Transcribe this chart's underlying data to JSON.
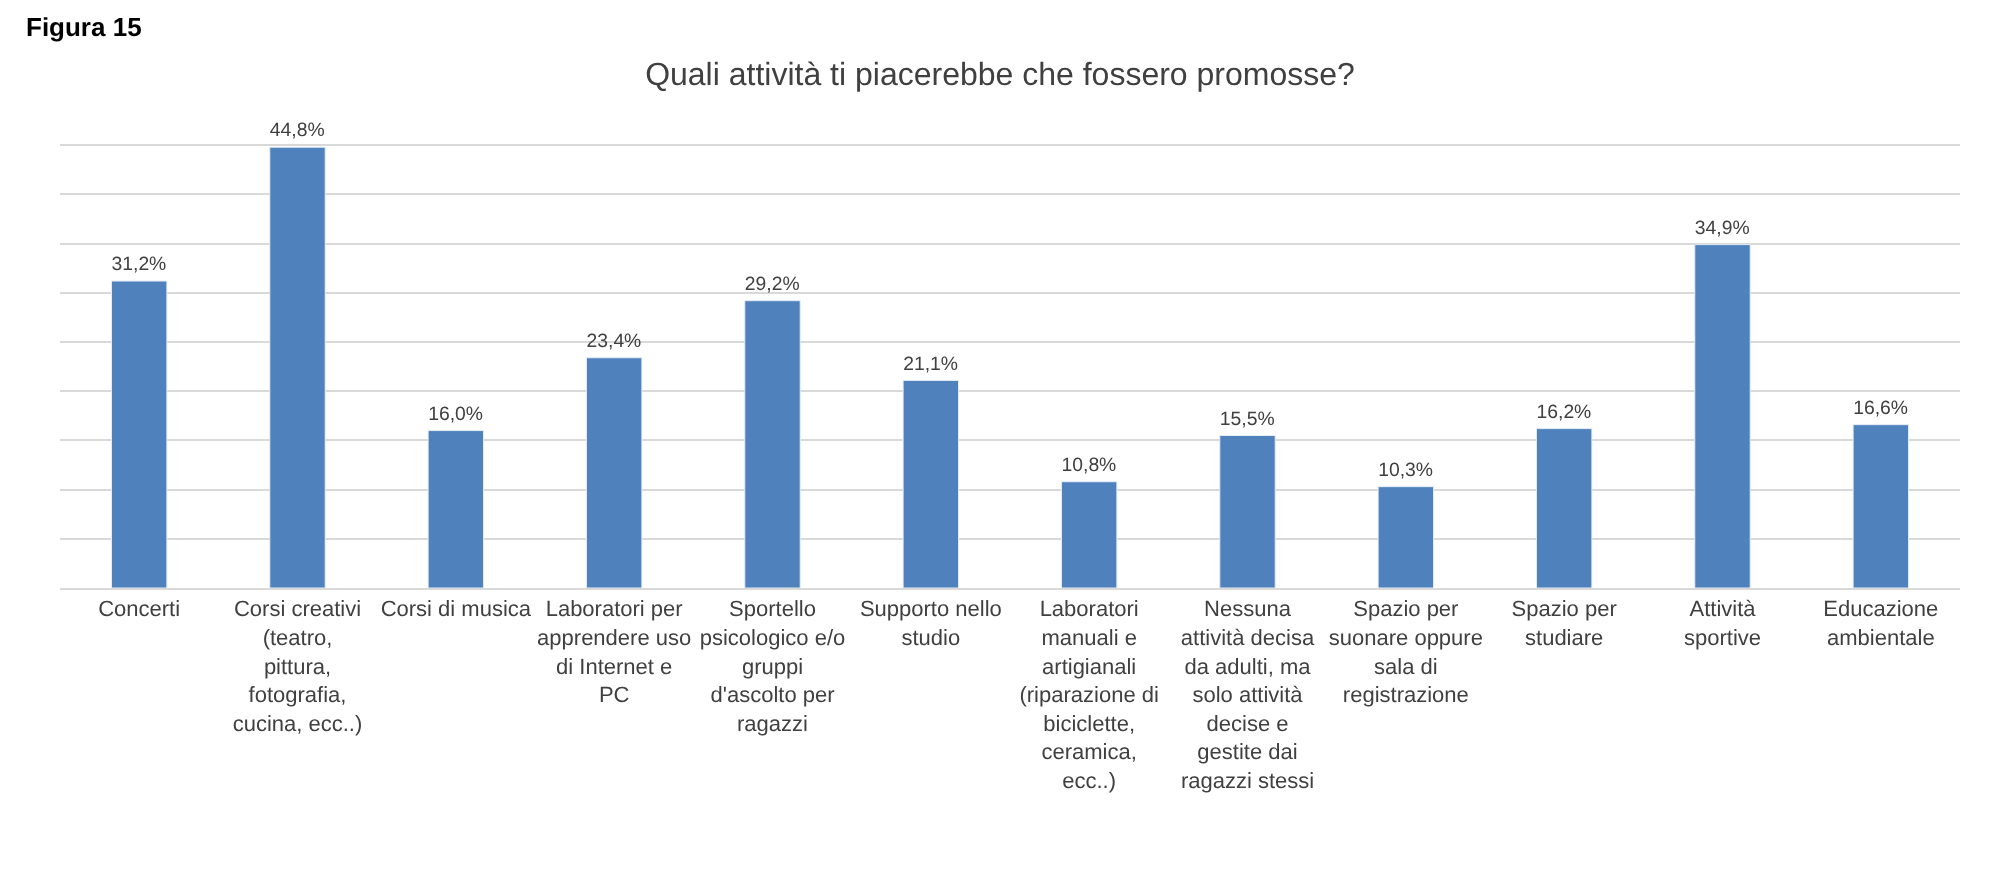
{
  "chart_data": {
    "type": "bar",
    "title": "Quali attività ti piacerebbe che fossero promosse?",
    "annotations": [
      "Figura 15"
    ],
    "categories": [
      "Concerti",
      "Corsi creativi (teatro, pittura, fotografia, cucina, ecc..)",
      "Corsi di musica",
      "Laboratori per apprendere uso di Internet e PC",
      "Sportello psicologico e/o gruppi d'ascolto per ragazzi",
      "Supporto nello studio",
      "Laboratori manuali e artigianali (riparazione di biciclette, ceramica, ecc..)",
      "Nessuna attività decisa da adulti, ma solo attività decise e gestite dai ragazzi stessi",
      "Spazio per suonare oppure sala di registrazione",
      "Spazio per studiare",
      "Attività sportive",
      "Educazione ambientale"
    ],
    "values": [
      31.2,
      44.8,
      16.0,
      23.4,
      29.2,
      21.1,
      10.8,
      15.5,
      10.3,
      16.2,
      34.9,
      16.6
    ],
    "value_labels": [
      "31,2%",
      "44,8%",
      "16,0%",
      "23,4%",
      "29,2%",
      "21,1%",
      "10,8%",
      "15,5%",
      "10,3%",
      "16,2%",
      "34,9%",
      "16,6%"
    ],
    "color": "#4f81bd",
    "tick_labels": "x",
    "grid": "y"
  }
}
